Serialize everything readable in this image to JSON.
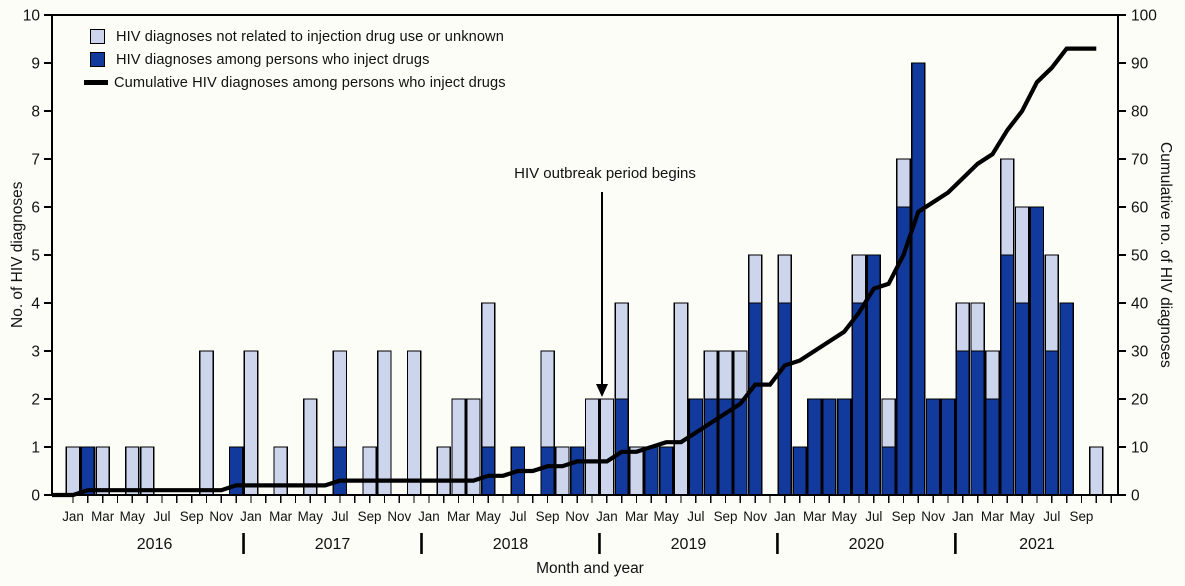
{
  "figure": {
    "left_axis_title": "No. of HIV diagnoses",
    "right_axis_title": "Cumulative no. of HIV diagnoses",
    "x_axis_title": "Month and year",
    "annotation": "HIV outbreak period begins"
  },
  "legend": {
    "items": [
      {
        "swatch": "light",
        "label": "HIV diagnoses not related to injection drug use or unknown"
      },
      {
        "swatch": "dark",
        "label": "HIV diagnoses among persons who inject drugs"
      },
      {
        "swatch": "line",
        "label": "Cumulative HIV diagnoses among persons who inject drugs"
      }
    ]
  },
  "colors": {
    "light_bar": "#ccd5ec",
    "dark_bar": "#123a9c",
    "bar_border": "#000000",
    "line": "#000000",
    "background": "#fcfdf6",
    "text": "#111111"
  },
  "chart_data": {
    "type": "bar",
    "subtype": "stacked-bars-with-cumulative-line",
    "x_unit": "month",
    "years": [
      "2016",
      "2017",
      "2018",
      "2019",
      "2020",
      "2021"
    ],
    "months_full": [
      "Jan",
      "Feb",
      "Mar",
      "Apr",
      "May",
      "Jun",
      "Jul",
      "Aug",
      "Sep",
      "Oct",
      "Nov",
      "Dec"
    ],
    "month_tick_labels_shown": [
      "Jan",
      "Mar",
      "May",
      "Jul",
      "Sep",
      "Nov"
    ],
    "note_2021": "2021 data shown Jan through Nov tick; last bar Oct; Nov 2021 month label not shown",
    "left_ylim": [
      0,
      10
    ],
    "right_ylim": [
      0,
      100
    ],
    "left_ticks": [
      0,
      1,
      2,
      3,
      4,
      5,
      6,
      7,
      8,
      9,
      10
    ],
    "right_ticks": [
      0,
      10,
      20,
      30,
      40,
      50,
      60,
      70,
      80,
      90,
      100
    ],
    "grid": false,
    "legend_position": "top-left-inside",
    "series": [
      {
        "name": "HIV diagnoses not related to injection drug use or unknown",
        "type": "bar",
        "stack": "top",
        "axis": "left",
        "values_by_year": {
          "2016": [
            1,
            0,
            1,
            0,
            1,
            1,
            0,
            0,
            0,
            3,
            0,
            0
          ],
          "2017": [
            3,
            0,
            1,
            0,
            2,
            0,
            2,
            0,
            1,
            3,
            0,
            3
          ],
          "2018": [
            0,
            1,
            2,
            2,
            3,
            0,
            0,
            0,
            2,
            1,
            0,
            2
          ],
          "2019": [
            2,
            2,
            1,
            0,
            0,
            4,
            0,
            1,
            1,
            1,
            1,
            0
          ],
          "2020": [
            1,
            0,
            0,
            0,
            0,
            1,
            0,
            1,
            1,
            0,
            0,
            0
          ],
          "2021": [
            1,
            1,
            1,
            2,
            2,
            0,
            2,
            0,
            0,
            1,
            0
          ]
        }
      },
      {
        "name": "HIV diagnoses among persons who inject drugs",
        "type": "bar",
        "stack": "bottom",
        "axis": "left",
        "values_by_year": {
          "2016": [
            0,
            1,
            0,
            0,
            0,
            0,
            0,
            0,
            0,
            0,
            0,
            1
          ],
          "2017": [
            0,
            0,
            0,
            0,
            0,
            0,
            1,
            0,
            0,
            0,
            0,
            0
          ],
          "2018": [
            0,
            0,
            0,
            0,
            1,
            0,
            1,
            0,
            1,
            0,
            1,
            0
          ],
          "2019": [
            0,
            2,
            0,
            1,
            1,
            0,
            2,
            2,
            2,
            2,
            4,
            0
          ],
          "2020": [
            4,
            1,
            2,
            2,
            2,
            4,
            5,
            1,
            6,
            9,
            2,
            2
          ],
          "2021": [
            3,
            3,
            2,
            5,
            4,
            6,
            3,
            4,
            0,
            0,
            0
          ]
        }
      },
      {
        "name": "Cumulative HIV diagnoses among persons who inject drugs",
        "type": "line",
        "axis": "right",
        "values_by_year": {
          "2016": [
            0,
            1,
            1,
            1,
            1,
            1,
            1,
            1,
            1,
            1,
            1,
            2
          ],
          "2017": [
            2,
            2,
            2,
            2,
            2,
            2,
            3,
            3,
            3,
            3,
            3,
            3
          ],
          "2018": [
            3,
            3,
            3,
            3,
            4,
            4,
            5,
            5,
            6,
            6,
            7,
            7
          ],
          "2019": [
            7,
            9,
            9,
            10,
            11,
            11,
            13,
            15,
            17,
            19,
            23,
            23
          ],
          "2020": [
            27,
            28,
            30,
            32,
            34,
            38,
            43,
            44,
            50,
            59,
            61,
            63
          ],
          "2021": [
            66,
            69,
            71,
            76,
            80,
            86,
            89,
            93,
            93,
            93,
            null
          ]
        }
      }
    ],
    "annotation": {
      "text": "HIV outbreak period begins",
      "target_month": "Jan 2019"
    }
  }
}
